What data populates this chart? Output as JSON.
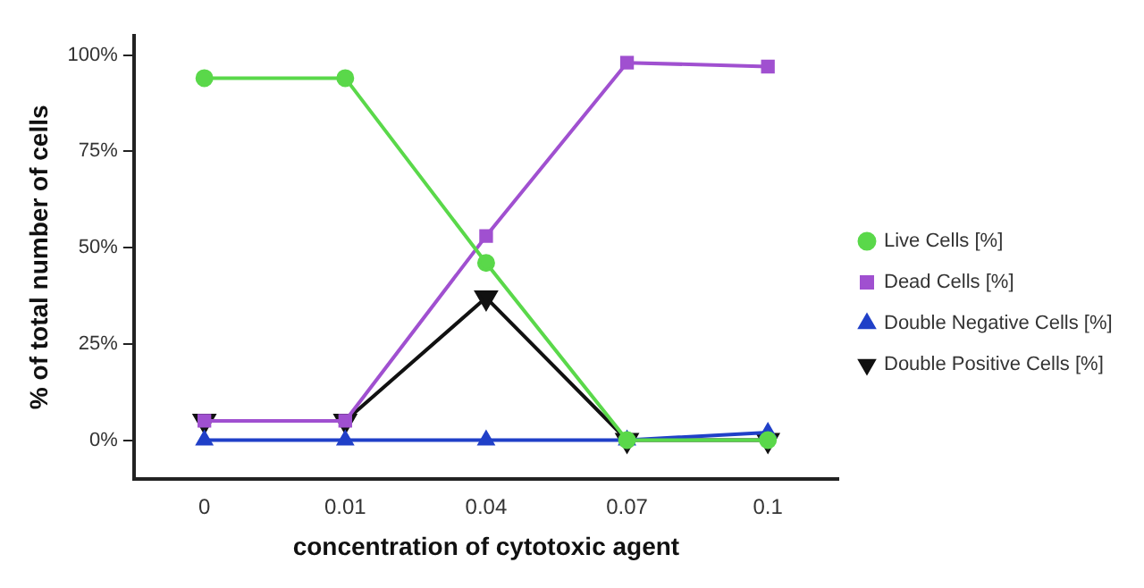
{
  "chart_data": {
    "type": "line",
    "xlabel": "concentration of cytotoxic agent",
    "ylabel": "% of total number of cells",
    "categories": [
      "0",
      "0.01",
      "0.04",
      "0.07",
      "0.1"
    ],
    "ylim": [
      -10,
      105
    ],
    "yticks": [
      {
        "value": 0,
        "label": "0%"
      },
      {
        "value": 25,
        "label": "25%"
      },
      {
        "value": 50,
        "label": "50%"
      },
      {
        "value": 75,
        "label": "75%"
      },
      {
        "value": 100,
        "label": "100%"
      }
    ],
    "grid": false,
    "legend": "right",
    "series": [
      {
        "name": "Live Cells [%]",
        "color": "#5ad84a",
        "marker": "circle",
        "values": [
          94,
          94,
          46,
          0,
          0
        ]
      },
      {
        "name": "Dead Cells [%]",
        "color": "#a050d0",
        "marker": "square",
        "values": [
          5,
          5,
          53,
          98,
          97
        ]
      },
      {
        "name": "Double Negative Cells [%]",
        "color": "#2040c8",
        "marker": "triangle",
        "values": [
          0,
          0,
          0,
          0,
          2
        ]
      },
      {
        "name": "Double Positive Cells [%]",
        "color": "#111111",
        "marker": "triangle-down",
        "values": [
          5,
          5,
          37,
          0,
          0
        ]
      }
    ]
  }
}
